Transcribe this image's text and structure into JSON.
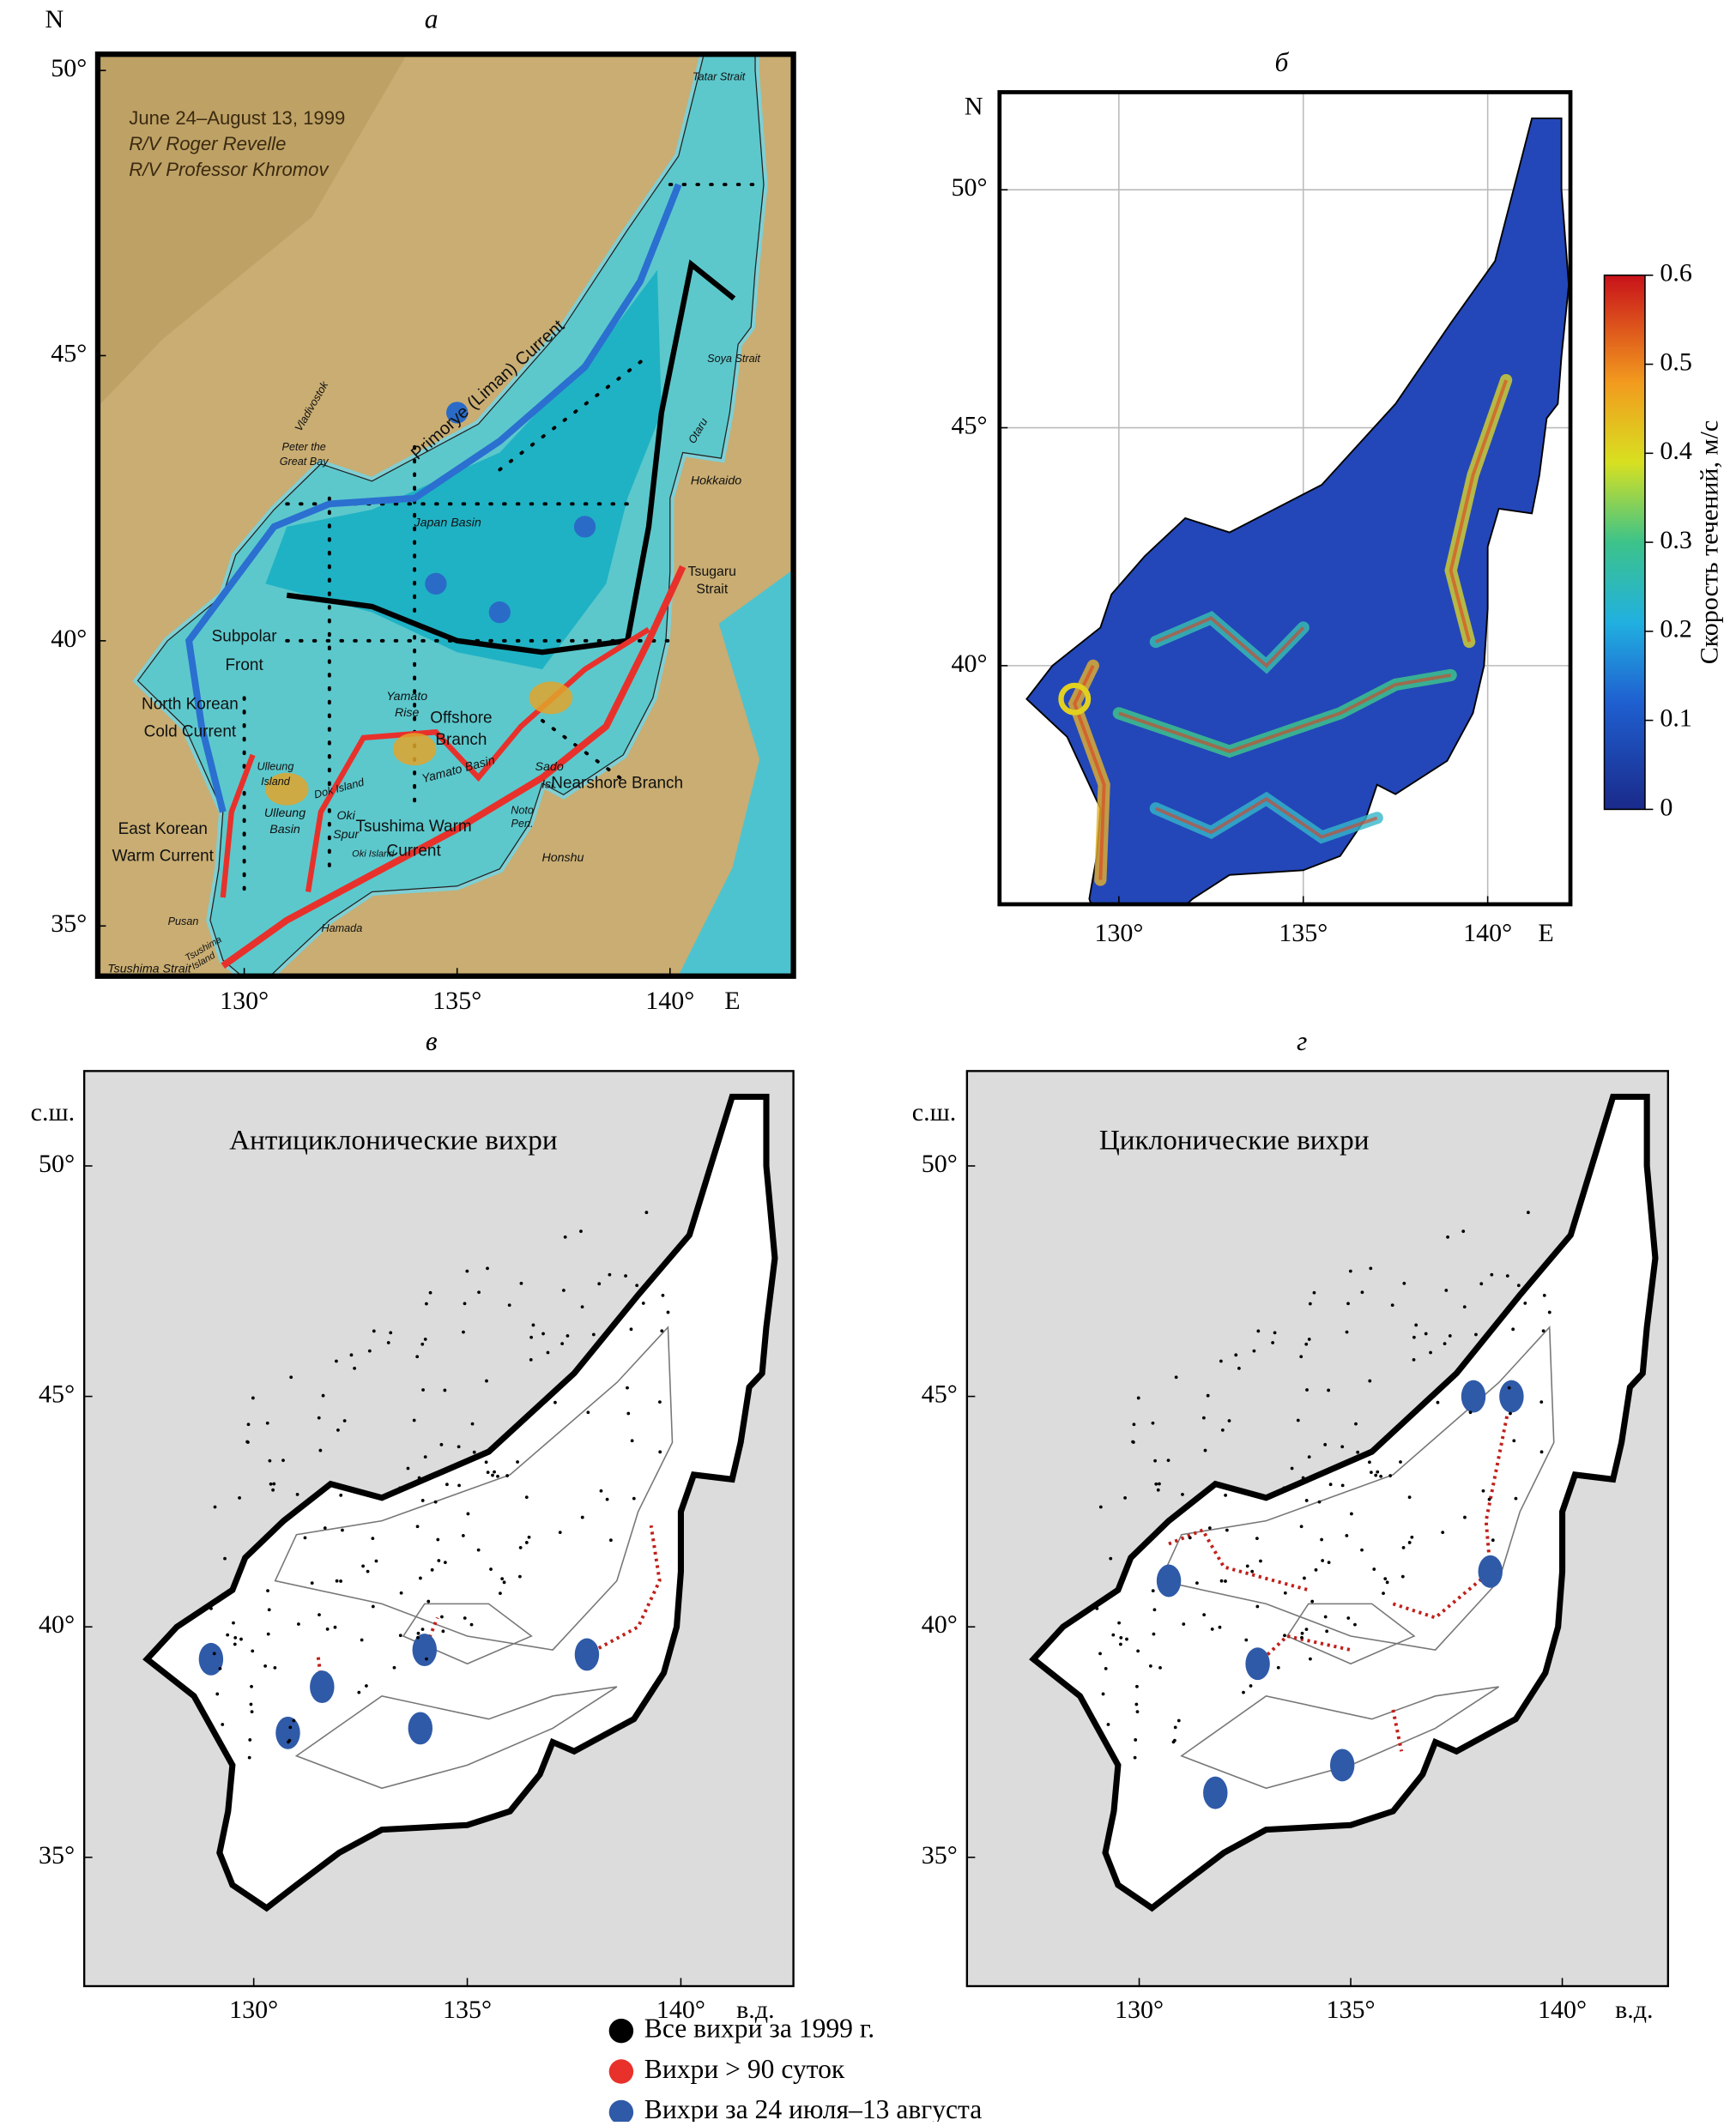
{
  "panel_a": {
    "label": "а",
    "north": "N",
    "east": "E",
    "lat_ticks": [
      {
        "value": 50,
        "label": "50°"
      },
      {
        "value": 45,
        "label": "45°"
      },
      {
        "value": 40,
        "label": "40°"
      },
      {
        "value": 35,
        "label": "35°"
      }
    ],
    "lon_ticks": [
      {
        "value": 130,
        "label": "130°"
      },
      {
        "value": 135,
        "label": "135°"
      },
      {
        "value": 140,
        "label": "140°"
      }
    ],
    "cruise": [
      "June 24–August 13, 1999",
      "R/V Roger Revelle",
      "R/V Professor Khromov"
    ],
    "places": [
      "Tatar Strait",
      "Soya Strait",
      "Primorye (Liman) Current",
      "Vladivostok",
      "Peter the",
      "Great Bay",
      "Japan Basin",
      "Otaru",
      "Hokkaido",
      "Tsugaru",
      "Strait",
      "Subpolar",
      "Front",
      "North Korean",
      "Cold Current",
      "Yamato",
      "Rise",
      "Offshore",
      "Branch",
      "Yamato Basin",
      "Nearshore Branch",
      "Sado",
      "Isl.",
      "Ulleung",
      "Island",
      "Dok Island",
      "Ulleung",
      "Basin",
      "Oki",
      "Spur",
      "Oki Island",
      "Tsushima Warm",
      "Current",
      "East Korean",
      "Warm Current",
      "Noto",
      "Pen.",
      "Honshu",
      "Pusan",
      "Hamada",
      "Tsushima Strait",
      "Tsushima",
      "Island"
    ]
  },
  "panel_b": {
    "label": "б",
    "north": "N",
    "east": "E",
    "lat_ticks": [
      {
        "value": 50,
        "label": "50°"
      },
      {
        "value": 45,
        "label": "45°"
      },
      {
        "value": 40,
        "label": "40°"
      }
    ],
    "lon_ticks": [
      {
        "value": 130,
        "label": "130°"
      },
      {
        "value": 135,
        "label": "135°"
      },
      {
        "value": 140,
        "label": "140°"
      }
    ],
    "colorbar": {
      "title": "Скорость течений, м/с",
      "lim": [
        0,
        0.6
      ],
      "ticks": [
        0,
        0.1,
        0.2,
        0.3,
        0.4,
        0.5,
        0.6
      ]
    }
  },
  "panel_v": {
    "label": "в",
    "title": "Антициклонические вихри",
    "north": "с.ш.",
    "east": "в.д.",
    "lat_ticks": [
      {
        "value": 50,
        "label": "50°"
      },
      {
        "value": 45,
        "label": "45°"
      },
      {
        "value": 40,
        "label": "40°"
      },
      {
        "value": 35,
        "label": "35°"
      }
    ],
    "lon_ticks": [
      {
        "value": 130,
        "label": "130°"
      },
      {
        "value": 135,
        "label": "135°"
      },
      {
        "value": 140,
        "label": "140°"
      }
    ]
  },
  "panel_g": {
    "label": "г",
    "title": "Циклонические вихри",
    "north": "с.ш.",
    "east": "в.д.",
    "lat_ticks": [
      {
        "value": 50,
        "label": "50°"
      },
      {
        "value": 45,
        "label": "45°"
      },
      {
        "value": 40,
        "label": "40°"
      },
      {
        "value": 35,
        "label": "35°"
      }
    ],
    "lon_ticks": [
      {
        "value": 130,
        "label": "130°"
      },
      {
        "value": 135,
        "label": "135°"
      },
      {
        "value": 140,
        "label": "140°"
      }
    ]
  },
  "legend": [
    {
      "label": "Все вихри за 1999 г.",
      "color": "#000000"
    },
    {
      "label": "Вихри > 90 суток",
      "color": "#e8312b"
    },
    {
      "label": "Вихри за 24 июля–13 августа",
      "color": "#2f5aa8"
    }
  ]
}
